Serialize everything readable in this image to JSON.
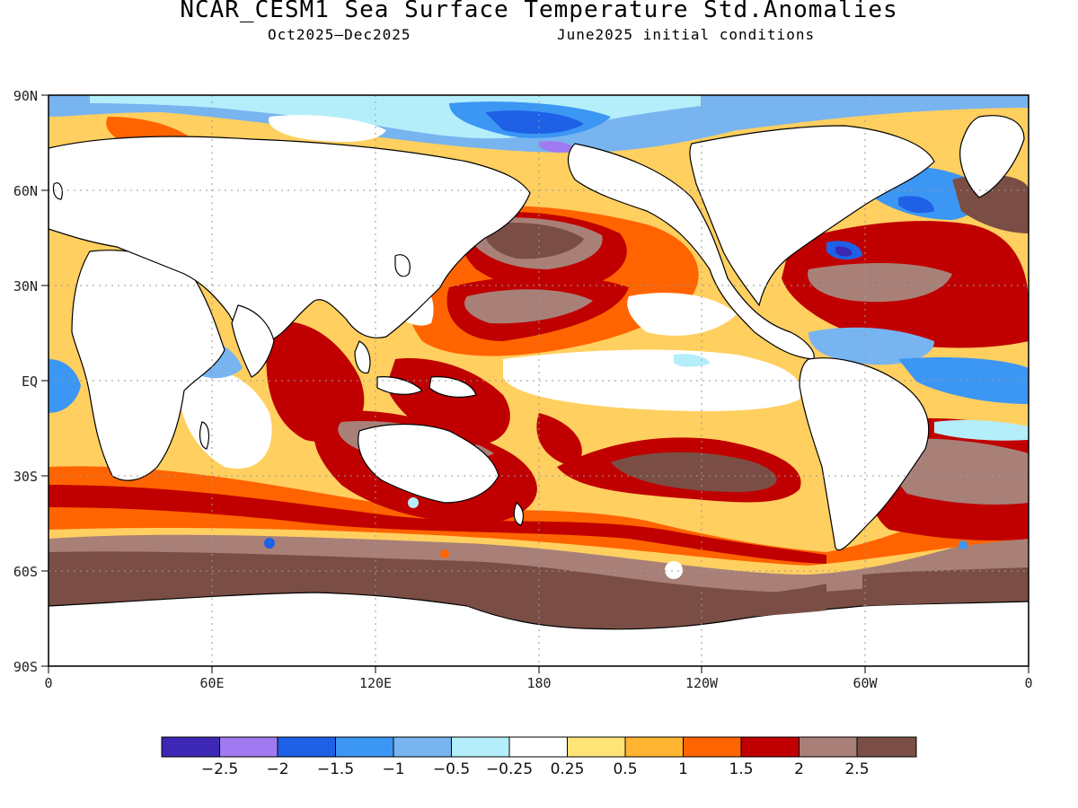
{
  "title": "NCAR_CESM1 Sea Surface Temperature Std.Anomalies",
  "subtitle_left": "Oct2025—Dec2025",
  "subtitle_right": "June2025 initial conditions",
  "lat_ticks": [
    "90N",
    "60N",
    "30N",
    "EQ",
    "30S",
    "60S",
    "90S"
  ],
  "lon_ticks": [
    "0",
    "60E",
    "120E",
    "180",
    "120W",
    "60W",
    "0"
  ],
  "colorbar": {
    "colors": [
      "#3c28b4",
      "#a07af0",
      "#1e60e6",
      "#3c96f4",
      "#78b4f0",
      "#b4eefa",
      "#ffffff",
      "#ffe478",
      "#ffb432",
      "#ff6400",
      "#c00000",
      "#a88078",
      "#7a4e44"
    ],
    "labels": [
      "−2.5",
      "−2",
      "−1.5",
      "−1",
      "−0.5",
      "−0.25",
      "0.25",
      "0.5",
      "1",
      "1.5",
      "2",
      "2.5"
    ]
  },
  "palette": {
    "land": "#ffffff",
    "coast": "#000000",
    "grid": "#9a9a9a"
  }
}
